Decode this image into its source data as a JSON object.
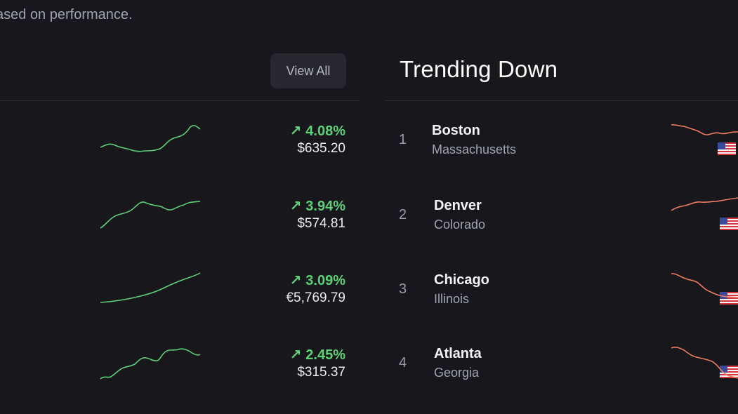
{
  "header": {
    "subtitle": "ased on performance."
  },
  "trending_up": {
    "view_all_label": "View All",
    "items": [
      {
        "change": "4.08%",
        "price": "$635.20"
      },
      {
        "change": "3.94%",
        "price": "$574.81"
      },
      {
        "change": "3.09%",
        "price": "€5,769.79"
      },
      {
        "change": "2.45%",
        "price": "$315.37"
      }
    ]
  },
  "trending_down": {
    "title": "Trending Down",
    "items": [
      {
        "rank": "1",
        "city": "Boston",
        "region": "Massachusetts"
      },
      {
        "rank": "2",
        "city": "Denver",
        "region": "Colorado"
      },
      {
        "rank": "3",
        "city": "Chicago",
        "region": "Illinois"
      },
      {
        "rank": "4",
        "city": "Atlanta",
        "region": "Georgia"
      }
    ]
  },
  "colors": {
    "background": "#17171c",
    "up": "#5ed178",
    "down": "#ef7c61",
    "divider": "#2b2b31"
  },
  "icons": {
    "up_arrow": "arrow-up-right-icon",
    "flag": "us-flag-icon"
  }
}
